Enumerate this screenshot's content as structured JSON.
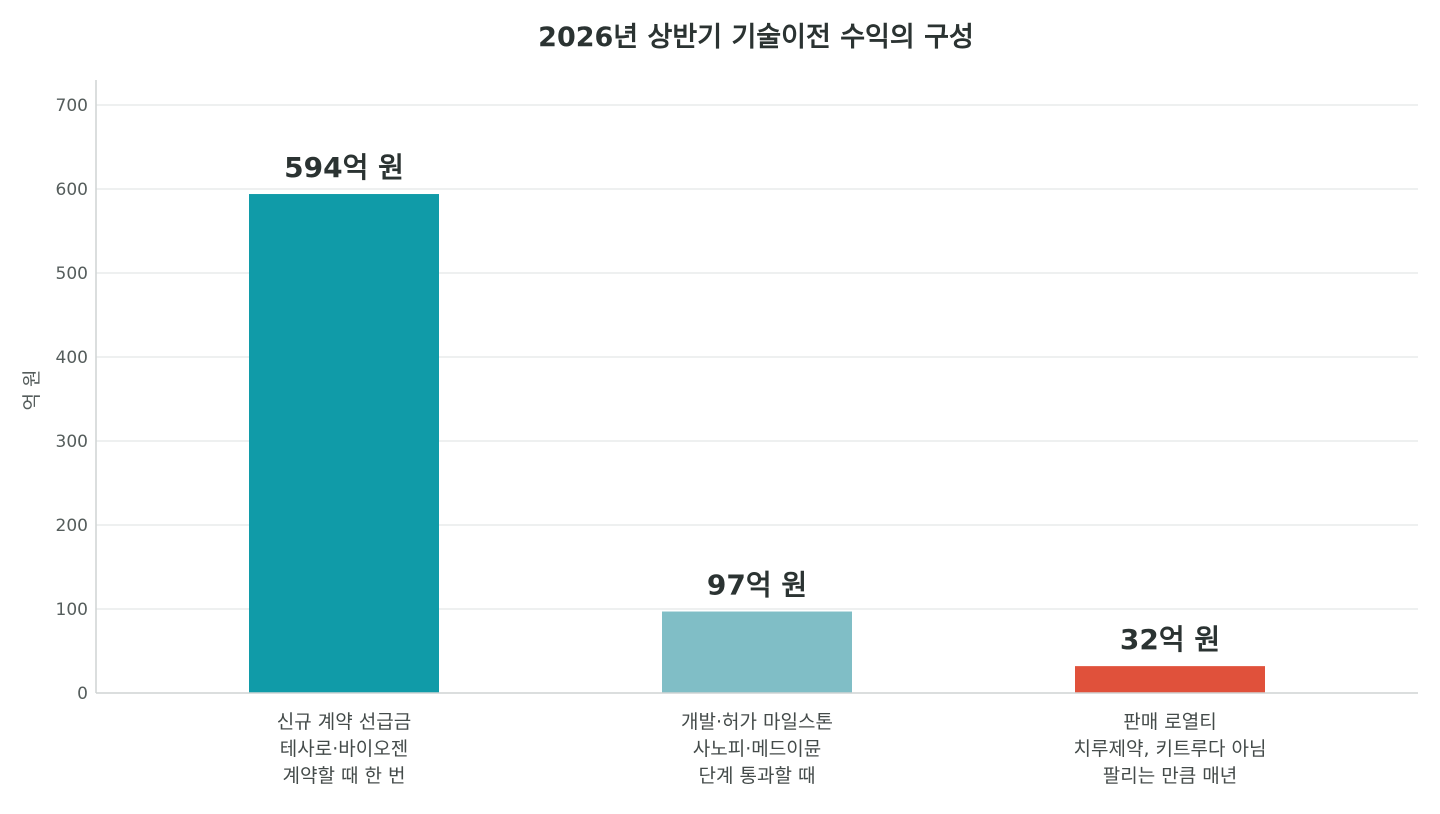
{
  "chart_data": {
    "type": "bar",
    "title": "2026년 상반기 기술이전 수익의 구성",
    "ylabel": "억 원",
    "xlabel": "",
    "ylim": [
      0,
      700
    ],
    "yticks": [
      0,
      100,
      200,
      300,
      400,
      500,
      600,
      700
    ],
    "grid": true,
    "categories": [
      [
        "신규 계약 선급금",
        "테사로·바이오젠",
        "계약할 때 한 번"
      ],
      [
        "개발·허가 마일스톤",
        "사노피·메드이뮨",
        "단계 통과할 때"
      ],
      [
        "판매 로열티",
        "치루제약, 키트루다 아님",
        "팔리는 만큼 매년"
      ]
    ],
    "values": [
      594,
      97,
      32
    ],
    "data_labels": [
      "594억 원",
      "97억 원",
      "32억 원"
    ],
    "colors": [
      "#109ba8",
      "#80bec6",
      "#e0513b"
    ]
  }
}
